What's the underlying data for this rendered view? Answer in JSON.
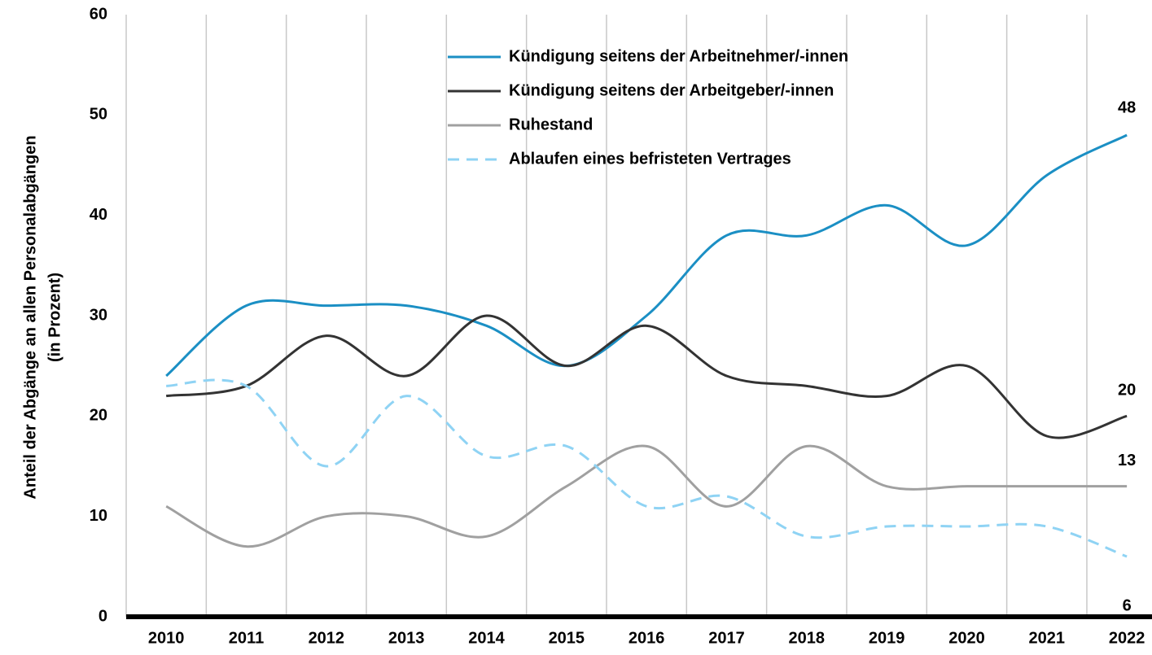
{
  "chart_data": {
    "type": "line",
    "ylabel": [
      "Anteil der Abgänge an allen Personalabgängen",
      "(in Prozent)"
    ],
    "categories": [
      "2010",
      "2011",
      "2012",
      "2013",
      "2014",
      "2015",
      "2016",
      "2017",
      "2018",
      "2019",
      "2020",
      "2021",
      "2022"
    ],
    "ylim": [
      0,
      60
    ],
    "yticks": [
      0,
      10,
      20,
      30,
      40,
      50,
      60
    ],
    "grid": "x",
    "smooth": true,
    "series": [
      {
        "name": "Kündigung seitens der Arbeitnehmer/-innen",
        "color": "#1b8fc4",
        "dash": false,
        "values": [
          24,
          31,
          31,
          31,
          29,
          25,
          30,
          38,
          38,
          41,
          37,
          44,
          48
        ]
      },
      {
        "name": "Kündigung seitens der Arbeitgeber/-innen",
        "color": "#333333",
        "dash": false,
        "values": [
          22,
          23,
          28,
          24,
          30,
          25,
          29,
          24,
          23,
          22,
          25,
          18,
          20
        ]
      },
      {
        "name": "Ruhestand",
        "color": "#a0a0a0",
        "dash": false,
        "values": [
          11,
          7,
          10,
          10,
          8,
          13,
          17,
          11,
          17,
          13,
          13,
          13,
          13
        ]
      },
      {
        "name": "Ablaufen eines befristeten Vertrages",
        "color": "#8fd3f4",
        "dash": true,
        "values": [
          23,
          23,
          15,
          22,
          16,
          17,
          11,
          12,
          8,
          9,
          9,
          9,
          6
        ]
      }
    ]
  }
}
